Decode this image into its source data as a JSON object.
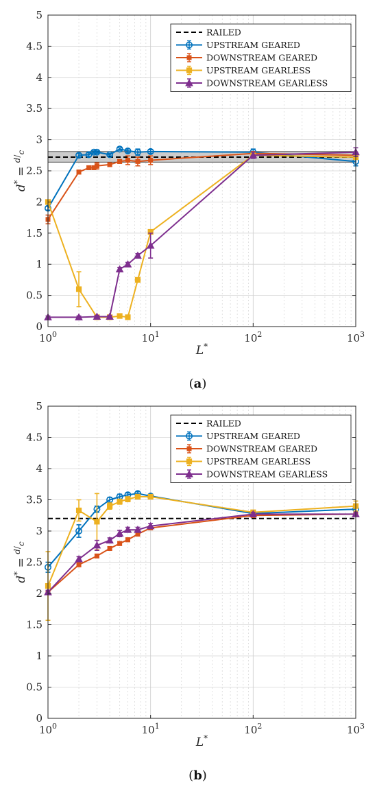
{
  "chart_data": [
    {
      "type": "line",
      "panel_label": "(a)",
      "panel_letter": "a",
      "xlabel": "L*",
      "ylabel": "d* = d/c",
      "xscale": "log",
      "xlim": [
        1,
        1000
      ],
      "ylim": [
        0,
        5
      ],
      "yticks": [
        0,
        0.5,
        1,
        1.5,
        2,
        2.5,
        3,
        3.5,
        4,
        4.5,
        5
      ],
      "ytick_labels": [
        "0",
        "0.5",
        "1",
        "1.5",
        "2",
        "2.5",
        "3",
        "3.5",
        "4",
        "4.5",
        "5"
      ],
      "xtick_labels": [
        {
          "base": "10",
          "exp": "0"
        },
        {
          "base": "10",
          "exp": "1"
        },
        {
          "base": "10",
          "exp": "2"
        },
        {
          "base": "10",
          "exp": "3"
        }
      ],
      "grid": true,
      "legend_position": "top-right",
      "railed": {
        "name": "RAILED",
        "y": 2.72,
        "band": [
          2.64,
          2.81
        ],
        "color": "#000000"
      },
      "series": [
        {
          "name": "UPSTREAM GEARED",
          "color": "#0072BD",
          "marker": "circle",
          "x": [
            1,
            2,
            2.5,
            2.8,
            3,
            4,
            5,
            6,
            7.5,
            10,
            100,
            1000
          ],
          "y": [
            1.9,
            2.75,
            2.76,
            2.8,
            2.8,
            2.76,
            2.85,
            2.82,
            2.8,
            2.81,
            2.8,
            2.65
          ],
          "err": [
            0.03,
            0.03,
            0.03,
            0.02,
            0.02,
            0.02,
            0.02,
            0.03,
            0.05,
            0.03,
            0.05,
            0.07
          ]
        },
        {
          "name": "DOWNSTREAM GEARED",
          "color": "#D95319",
          "marker": "x",
          "x": [
            1,
            2,
            2.5,
            2.8,
            3,
            4,
            5,
            6,
            7.5,
            10,
            100,
            1000
          ],
          "y": [
            1.72,
            2.48,
            2.55,
            2.55,
            2.58,
            2.6,
            2.65,
            2.67,
            2.65,
            2.67,
            2.78,
            2.75
          ],
          "err": [
            0.07,
            0.03,
            0.03,
            0.03,
            0.05,
            0.03,
            0.03,
            0.07,
            0.07,
            0.07,
            0.03,
            0.05
          ]
        },
        {
          "name": "UPSTREAM GEARLESS",
          "color": "#EDB120",
          "marker": "square",
          "x": [
            1,
            2,
            3,
            4,
            5,
            6,
            7.5,
            10,
            100,
            1000
          ],
          "y": [
            2.0,
            0.6,
            0.15,
            0.15,
            0.17,
            0.15,
            0.75,
            1.52,
            2.75,
            2.72
          ],
          "err": [
            0.03,
            0.28,
            0.03,
            0.03,
            0.02,
            0.02,
            0.03,
            0.03,
            0.03,
            0.03
          ]
        },
        {
          "name": "DOWNSTREAM GEARLESS",
          "color": "#7E2F8E",
          "marker": "triangle",
          "x": [
            1,
            2,
            3,
            4,
            5,
            6,
            7.5,
            10,
            100,
            1000
          ],
          "y": [
            0.15,
            0.15,
            0.16,
            0.16,
            0.92,
            1.0,
            1.14,
            1.3,
            2.75,
            2.8
          ],
          "err": [
            0.02,
            0.02,
            0.02,
            0.02,
            0.03,
            0.03,
            0.03,
            0.2,
            0.05,
            0.07
          ]
        }
      ]
    },
    {
      "type": "line",
      "panel_label": "(b)",
      "panel_letter": "b",
      "xlabel": "L*",
      "ylabel": "d* = d/c",
      "xscale": "log",
      "xlim": [
        1,
        1000
      ],
      "ylim": [
        0,
        5
      ],
      "yticks": [
        0,
        0.5,
        1,
        1.5,
        2,
        2.5,
        3,
        3.5,
        4,
        4.5,
        5
      ],
      "ytick_labels": [
        "0",
        "0.5",
        "1",
        "1.5",
        "2",
        "2.5",
        "3",
        "3.5",
        "4",
        "4.5",
        "5"
      ],
      "xtick_labels": [
        {
          "base": "10",
          "exp": "0"
        },
        {
          "base": "10",
          "exp": "1"
        },
        {
          "base": "10",
          "exp": "2"
        },
        {
          "base": "10",
          "exp": "3"
        }
      ],
      "grid": true,
      "legend_position": "top-right",
      "railed": {
        "name": "RAILED",
        "y": 3.2,
        "band": null,
        "color": "#000000"
      },
      "series": [
        {
          "name": "UPSTREAM GEARED",
          "color": "#0072BD",
          "marker": "circle",
          "x": [
            1,
            2,
            3,
            4,
            5,
            6,
            7.5,
            10,
            100,
            1000
          ],
          "y": [
            2.42,
            3.0,
            3.35,
            3.5,
            3.55,
            3.58,
            3.6,
            3.56,
            3.28,
            3.35
          ],
          "err": [
            0.08,
            0.1,
            0.05,
            0.04,
            0.04,
            0.03,
            0.03,
            0.03,
            0.03,
            0.03
          ]
        },
        {
          "name": "DOWNSTREAM GEARED",
          "color": "#D95319",
          "marker": "x",
          "x": [
            1,
            2,
            3,
            4,
            5,
            6,
            7.5,
            10,
            100,
            1000
          ],
          "y": [
            2.02,
            2.46,
            2.6,
            2.72,
            2.8,
            2.86,
            2.95,
            3.05,
            3.25,
            3.27
          ],
          "err": [
            0.03,
            0.03,
            0.03,
            0.03,
            0.03,
            0.03,
            0.03,
            0.03,
            0.03,
            0.03
          ]
        },
        {
          "name": "UPSTREAM GEARLESS",
          "color": "#EDB120",
          "marker": "square",
          "x": [
            1,
            2,
            3,
            4,
            5,
            6,
            7.5,
            10,
            100,
            1000
          ],
          "y": [
            2.12,
            3.33,
            3.15,
            3.4,
            3.47,
            3.51,
            3.55,
            3.55,
            3.3,
            3.4
          ],
          "err": [
            0.55,
            0.17,
            0.45,
            0.05,
            0.04,
            0.04,
            0.03,
            0.03,
            0.03,
            0.08
          ]
        },
        {
          "name": "DOWNSTREAM GEARLESS",
          "color": "#7E2F8E",
          "marker": "triangle",
          "x": [
            1,
            2,
            3,
            4,
            5,
            6,
            7.5,
            10,
            100,
            1000
          ],
          "y": [
            2.02,
            2.55,
            2.77,
            2.85,
            2.96,
            3.02,
            3.02,
            3.08,
            3.27,
            3.27
          ],
          "err": [
            0.03,
            0.04,
            0.08,
            0.04,
            0.05,
            0.04,
            0.04,
            0.04,
            0.03,
            0.03
          ]
        }
      ]
    }
  ]
}
